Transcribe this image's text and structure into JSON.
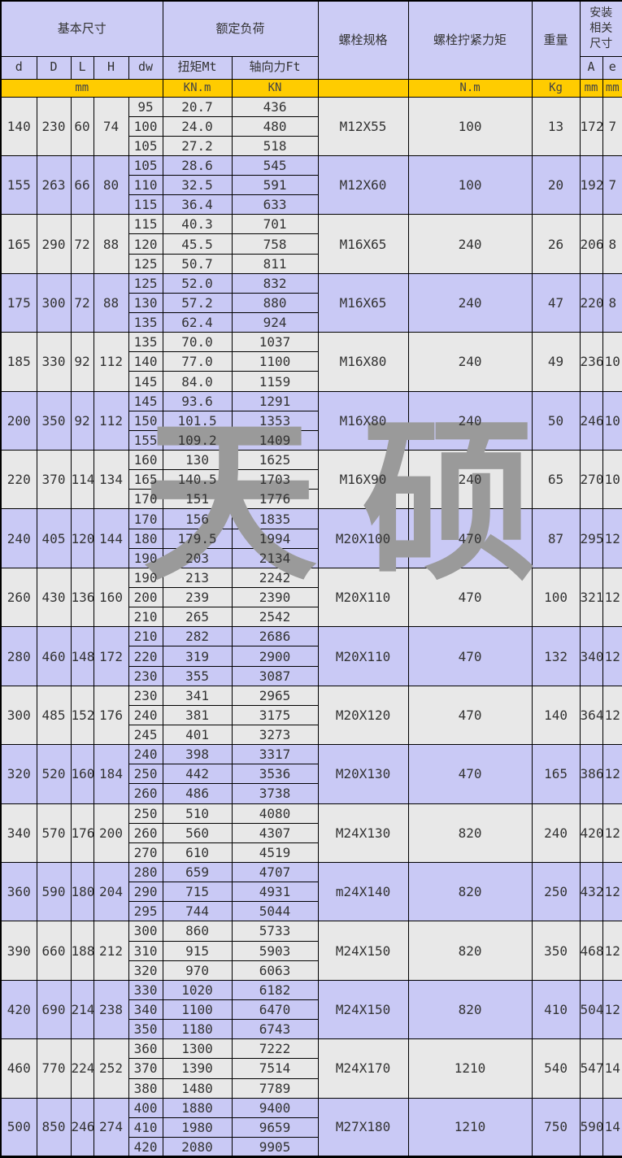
{
  "watermark": {
    "text": "天硕"
  },
  "colors": {
    "header_bg": "#ccccf5",
    "row_alt_bg": "#c9c9f5",
    "row_bg": "#e8e8e8",
    "unit_bg": "#ffcc00",
    "border": "#000000",
    "watermark": "#9a9a9a"
  },
  "table": {
    "header": {
      "basic_dims": "基本尺寸",
      "rated_load": "额定负荷",
      "bolt_spec": "螺栓规格",
      "bolt_torque": "螺栓拧紧力矩",
      "weight": "重量",
      "install_dims": "安装相关尺寸",
      "sub": {
        "d": "d",
        "D": "D",
        "L": "L",
        "H": "H",
        "dw": "dw",
        "mt": "扭矩Mt",
        "ft": "轴向力Ft",
        "A": "A",
        "e": "e"
      },
      "units": {
        "mm": "mm",
        "knm": "KN.m",
        "kn": "KN",
        "bolt": "",
        "nm": "N.m",
        "kg": "Kg",
        "a_mm": "mm",
        "e_mm": "mm"
      }
    },
    "groups": [
      {
        "d": "140",
        "D": "230",
        "L": "60",
        "H": "74",
        "rows": [
          [
            "95",
            "20.7",
            "436"
          ],
          [
            "100",
            "24.0",
            "480"
          ],
          [
            "105",
            "27.2",
            "518"
          ]
        ],
        "bolt": "M12X55",
        "torque": "100",
        "weight": "13",
        "A": "172",
        "e": "7"
      },
      {
        "d": "155",
        "D": "263",
        "L": "66",
        "H": "80",
        "rows": [
          [
            "105",
            "28.6",
            "545"
          ],
          [
            "110",
            "32.5",
            "591"
          ],
          [
            "115",
            "36.4",
            "633"
          ]
        ],
        "bolt": "M12X60",
        "torque": "100",
        "weight": "20",
        "A": "192",
        "e": "7"
      },
      {
        "d": "165",
        "D": "290",
        "L": "72",
        "H": "88",
        "rows": [
          [
            "115",
            "40.3",
            "701"
          ],
          [
            "120",
            "45.5",
            "758"
          ],
          [
            "125",
            "50.7",
            "811"
          ]
        ],
        "bolt": "M16X65",
        "torque": "240",
        "weight": "26",
        "A": "206",
        "e": "8"
      },
      {
        "d": "175",
        "D": "300",
        "L": "72",
        "H": "88",
        "rows": [
          [
            "125",
            "52.0",
            "832"
          ],
          [
            "130",
            "57.2",
            "880"
          ],
          [
            "135",
            "62.4",
            "924"
          ]
        ],
        "bolt": "M16X65",
        "torque": "240",
        "weight": "47",
        "A": "220",
        "e": "8"
      },
      {
        "d": "185",
        "D": "330",
        "L": "92",
        "H": "112",
        "rows": [
          [
            "135",
            "70.0",
            "1037"
          ],
          [
            "140",
            "77.0",
            "1100"
          ],
          [
            "145",
            "84.0",
            "1159"
          ]
        ],
        "bolt": "M16X80",
        "torque": "240",
        "weight": "49",
        "A": "236",
        "e": "10"
      },
      {
        "d": "200",
        "D": "350",
        "L": "92",
        "H": "112",
        "rows": [
          [
            "145",
            "93.6",
            "1291"
          ],
          [
            "150",
            "101.5",
            "1353"
          ],
          [
            "155",
            "109.2",
            "1409"
          ]
        ],
        "bolt": "M16X80",
        "torque": "240",
        "weight": "50",
        "A": "246",
        "e": "10"
      },
      {
        "d": "220",
        "D": "370",
        "L": "114",
        "H": "134",
        "rows": [
          [
            "160",
            "130",
            "1625"
          ],
          [
            "165",
            "140.5",
            "1703"
          ],
          [
            "170",
            "151",
            "1776"
          ]
        ],
        "bolt": "M16X90",
        "torque": "240",
        "weight": "65",
        "A": "270",
        "e": "10"
      },
      {
        "d": "240",
        "D": "405",
        "L": "120",
        "H": "144",
        "rows": [
          [
            "170",
            "156",
            "1835"
          ],
          [
            "180",
            "179.5",
            "1994"
          ],
          [
            "190",
            "203",
            "2134"
          ]
        ],
        "bolt": "M20X100",
        "torque": "470",
        "weight": "87",
        "A": "295",
        "e": "12"
      },
      {
        "d": "260",
        "D": "430",
        "L": "136",
        "H": "160",
        "rows": [
          [
            "190",
            "213",
            "2242"
          ],
          [
            "200",
            "239",
            "2390"
          ],
          [
            "210",
            "265",
            "2542"
          ]
        ],
        "bolt": "M20X110",
        "torque": "470",
        "weight": "100",
        "A": "321",
        "e": "12"
      },
      {
        "d": "280",
        "D": "460",
        "L": "148",
        "H": "172",
        "rows": [
          [
            "210",
            "282",
            "2686"
          ],
          [
            "220",
            "319",
            "2900"
          ],
          [
            "230",
            "355",
            "3087"
          ]
        ],
        "bolt": "M20X110",
        "torque": "470",
        "weight": "132",
        "A": "340",
        "e": "12"
      },
      {
        "d": "300",
        "D": "485",
        "L": "152",
        "H": "176",
        "rows": [
          [
            "230",
            "341",
            "2965"
          ],
          [
            "240",
            "381",
            "3175"
          ],
          [
            "245",
            "401",
            "3273"
          ]
        ],
        "bolt": "M20X120",
        "torque": "470",
        "weight": "140",
        "A": "364",
        "e": "12"
      },
      {
        "d": "320",
        "D": "520",
        "L": "160",
        "H": "184",
        "rows": [
          [
            "240",
            "398",
            "3317"
          ],
          [
            "250",
            "442",
            "3536"
          ],
          [
            "260",
            "486",
            "3738"
          ]
        ],
        "bolt": "M20X130",
        "torque": "470",
        "weight": "165",
        "A": "386",
        "e": "12"
      },
      {
        "d": "340",
        "D": "570",
        "L": "176",
        "H": "200",
        "rows": [
          [
            "250",
            "510",
            "4080"
          ],
          [
            "260",
            "560",
            "4307"
          ],
          [
            "270",
            "610",
            "4519"
          ]
        ],
        "bolt": "M24X130",
        "torque": "820",
        "weight": "240",
        "A": "420",
        "e": "12"
      },
      {
        "d": "360",
        "D": "590",
        "L": "180",
        "H": "204",
        "rows": [
          [
            "280",
            "659",
            "4707"
          ],
          [
            "290",
            "715",
            "4931"
          ],
          [
            "295",
            "744",
            "5044"
          ]
        ],
        "bolt": "m24X140",
        "torque": "820",
        "weight": "250",
        "A": "432",
        "e": "12"
      },
      {
        "d": "390",
        "D": "660",
        "L": "188",
        "H": "212",
        "rows": [
          [
            "300",
            "860",
            "5733"
          ],
          [
            "310",
            "915",
            "5903"
          ],
          [
            "320",
            "970",
            "6063"
          ]
        ],
        "bolt": "M24X150",
        "torque": "820",
        "weight": "350",
        "A": "468",
        "e": "12"
      },
      {
        "d": "420",
        "D": "690",
        "L": "214",
        "H": "238",
        "rows": [
          [
            "330",
            "1020",
            "6182"
          ],
          [
            "340",
            "1100",
            "6470"
          ],
          [
            "350",
            "1180",
            "6743"
          ]
        ],
        "bolt": "M24X150",
        "torque": "820",
        "weight": "410",
        "A": "504",
        "e": "12"
      },
      {
        "d": "460",
        "D": "770",
        "L": "224",
        "H": "252",
        "rows": [
          [
            "360",
            "1300",
            "7222"
          ],
          [
            "370",
            "1390",
            "7514"
          ],
          [
            "380",
            "1480",
            "7789"
          ]
        ],
        "bolt": "M24X170",
        "torque": "1210",
        "weight": "540",
        "A": "547",
        "e": "14"
      },
      {
        "d": "500",
        "D": "850",
        "L": "246",
        "H": "274",
        "rows": [
          [
            "400",
            "1880",
            "9400"
          ],
          [
            "410",
            "1980",
            "9659"
          ],
          [
            "420",
            "2080",
            "9905"
          ]
        ],
        "bolt": "M27X180",
        "torque": "1210",
        "weight": "750",
        "A": "590",
        "e": "14"
      }
    ]
  }
}
